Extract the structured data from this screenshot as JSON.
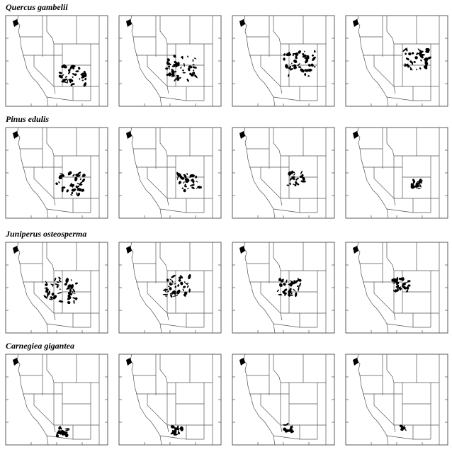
{
  "rows": [
    {
      "title": "Quercus gambelii"
    },
    {
      "title": "Pinus edulis"
    },
    {
      "title": "Juniperus osteosperma"
    },
    {
      "title": "Carnegiea gigantea"
    }
  ]
}
